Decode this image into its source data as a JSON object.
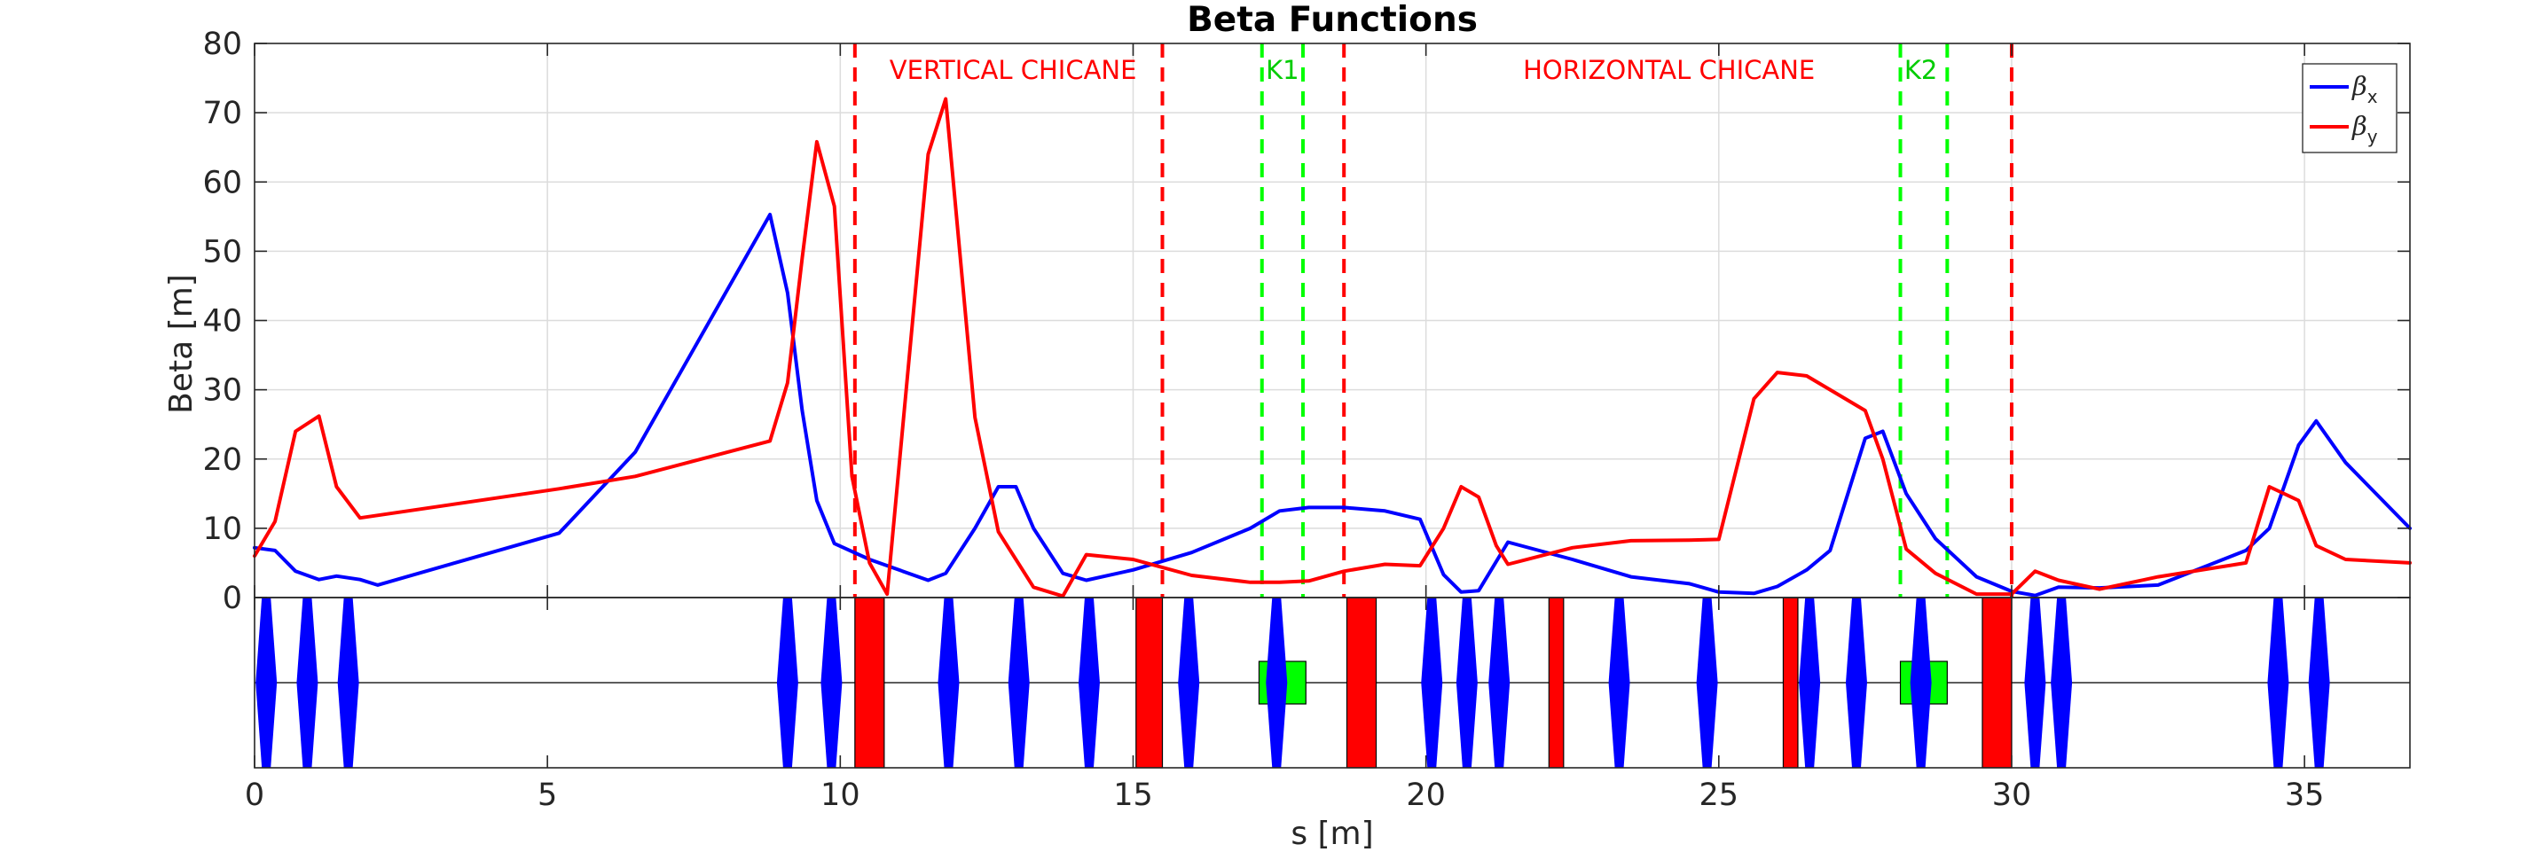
{
  "chart_data": {
    "type": "line",
    "title": "Beta Functions",
    "xlabel": "s [m]",
    "ylabel": "Beta [m]",
    "xlim": [
      0,
      36.8
    ],
    "ylim": [
      0,
      80
    ],
    "grid": true,
    "legend_position": "top-right",
    "xticks": [
      0,
      5,
      10,
      15,
      20,
      25,
      30,
      35
    ],
    "yticks": [
      0,
      10,
      20,
      30,
      40,
      50,
      60,
      70,
      80
    ],
    "series": [
      {
        "name": "β",
        "subscript": "x",
        "color": "#0000ff",
        "x": [
          0,
          0.35,
          0.7,
          1.1,
          1.4,
          1.8,
          2.1,
          5.2,
          6.5,
          8.8,
          9.1,
          9.35,
          9.6,
          9.9,
          10.5,
          11.5,
          11.8,
          12.3,
          12.7,
          13.0,
          13.3,
          13.8,
          14.2,
          15.0,
          16.0,
          17.0,
          17.5,
          18.0,
          18.6,
          19.3,
          19.9,
          20.3,
          20.6,
          20.9,
          21.4,
          22.5,
          23.5,
          24.5,
          25.0,
          25.6,
          26.0,
          26.5,
          26.9,
          27.5,
          27.8,
          28.2,
          28.7,
          29.4,
          30.0,
          30.4,
          30.8,
          31.5,
          32.5,
          34.0,
          34.4,
          34.9,
          35.2,
          35.7,
          36.8
        ],
        "y": [
          7.2,
          6.8,
          3.8,
          2.6,
          3.1,
          2.6,
          1.8,
          9.3,
          21.0,
          55.3,
          44.0,
          27.0,
          14.0,
          7.8,
          5.5,
          2.5,
          3.5,
          10.0,
          16.0,
          16.0,
          10.0,
          3.5,
          2.5,
          4.0,
          6.5,
          10.0,
          12.5,
          13.0,
          13.0,
          12.5,
          11.3,
          3.3,
          0.8,
          1.0,
          8.0,
          5.5,
          3.0,
          2.0,
          0.8,
          0.6,
          1.6,
          4.0,
          6.8,
          23.0,
          24.0,
          15.0,
          8.5,
          3.0,
          0.9,
          0.3,
          1.5,
          1.4,
          1.8,
          6.8,
          10.0,
          22.0,
          25.5,
          19.5,
          10.0
        ]
      },
      {
        "name": "β",
        "subscript": "y",
        "color": "#ff0000",
        "x": [
          0,
          0.35,
          0.7,
          1.1,
          1.4,
          1.8,
          5.2,
          6.5,
          8.8,
          9.1,
          9.35,
          9.6,
          9.9,
          10.2,
          10.5,
          10.8,
          11.5,
          11.8,
          12.3,
          12.7,
          13.3,
          13.8,
          14.2,
          15.0,
          16.0,
          17.0,
          17.5,
          18.0,
          18.6,
          19.3,
          19.9,
          20.3,
          20.6,
          20.9,
          21.2,
          21.4,
          22.5,
          23.5,
          24.5,
          25.0,
          25.6,
          26.0,
          26.5,
          26.9,
          27.5,
          27.8,
          28.2,
          28.7,
          29.4,
          30.0,
          30.4,
          30.8,
          31.5,
          32.5,
          34.0,
          34.4,
          34.9,
          35.2,
          35.7,
          36.8
        ],
        "y": [
          6.0,
          11.0,
          24.0,
          26.2,
          16.0,
          11.5,
          15.7,
          17.5,
          22.6,
          31.0,
          49.0,
          65.8,
          56.5,
          17.5,
          5.0,
          0.5,
          64.0,
          72.0,
          26.0,
          9.5,
          1.5,
          0.2,
          6.2,
          5.5,
          3.2,
          2.2,
          2.2,
          2.4,
          3.8,
          4.8,
          4.6,
          10.0,
          16.0,
          14.5,
          7.5,
          4.8,
          7.2,
          8.2,
          8.3,
          8.4,
          28.7,
          32.5,
          32.0,
          30.0,
          27.0,
          20.0,
          7.0,
          3.5,
          0.5,
          0.5,
          3.8,
          2.5,
          1.2,
          3.0,
          5.0,
          16.0,
          14.0,
          7.5,
          5.5,
          5.0
        ]
      }
    ],
    "region_labels": [
      {
        "text": "VERTICAL CHICANE",
        "x": 12.95,
        "color": "#ff0000"
      },
      {
        "text": "K1",
        "x": 17.55,
        "color": "#00cc00"
      },
      {
        "text": "HORIZONTAL CHICANE",
        "x": 24.15,
        "color": "#ff0000"
      },
      {
        "text": "K2",
        "x": 28.45,
        "color": "#00cc00"
      }
    ],
    "marker_lines": [
      {
        "x": 10.25,
        "color": "#ff0000"
      },
      {
        "x": 15.5,
        "color": "#ff0000"
      },
      {
        "x": 17.2,
        "color": "#00ff00"
      },
      {
        "x": 17.9,
        "color": "#00ff00"
      },
      {
        "x": 18.6,
        "color": "#ff0000"
      },
      {
        "x": 28.1,
        "color": "#00ff00"
      },
      {
        "x": 28.9,
        "color": "#00ff00"
      },
      {
        "x": 30.0,
        "color": "#ff0000"
      }
    ],
    "lattice": {
      "quadrupoles": [
        0.2,
        0.9,
        1.6,
        9.1,
        9.85,
        11.85,
        13.05,
        14.25,
        15.95,
        17.45,
        20.1,
        20.7,
        21.25,
        23.3,
        24.8,
        26.55,
        27.35,
        28.45,
        30.4,
        30.85,
        34.55,
        35.25
      ],
      "dipoles": [
        {
          "start": 10.25,
          "end": 10.75
        },
        {
          "start": 15.05,
          "end": 15.5
        },
        {
          "start": 18.65,
          "end": 19.15
        },
        {
          "start": 22.1,
          "end": 22.35
        },
        {
          "start": 26.1,
          "end": 26.35
        },
        {
          "start": 29.5,
          "end": 30.0
        }
      ],
      "kickers": [
        {
          "start": 17.15,
          "end": 17.95
        },
        {
          "start": 28.1,
          "end": 28.9
        }
      ],
      "quad_color": "#0000ff",
      "dipole_color": "#ff0000",
      "kicker_color": "#00ff00"
    }
  }
}
